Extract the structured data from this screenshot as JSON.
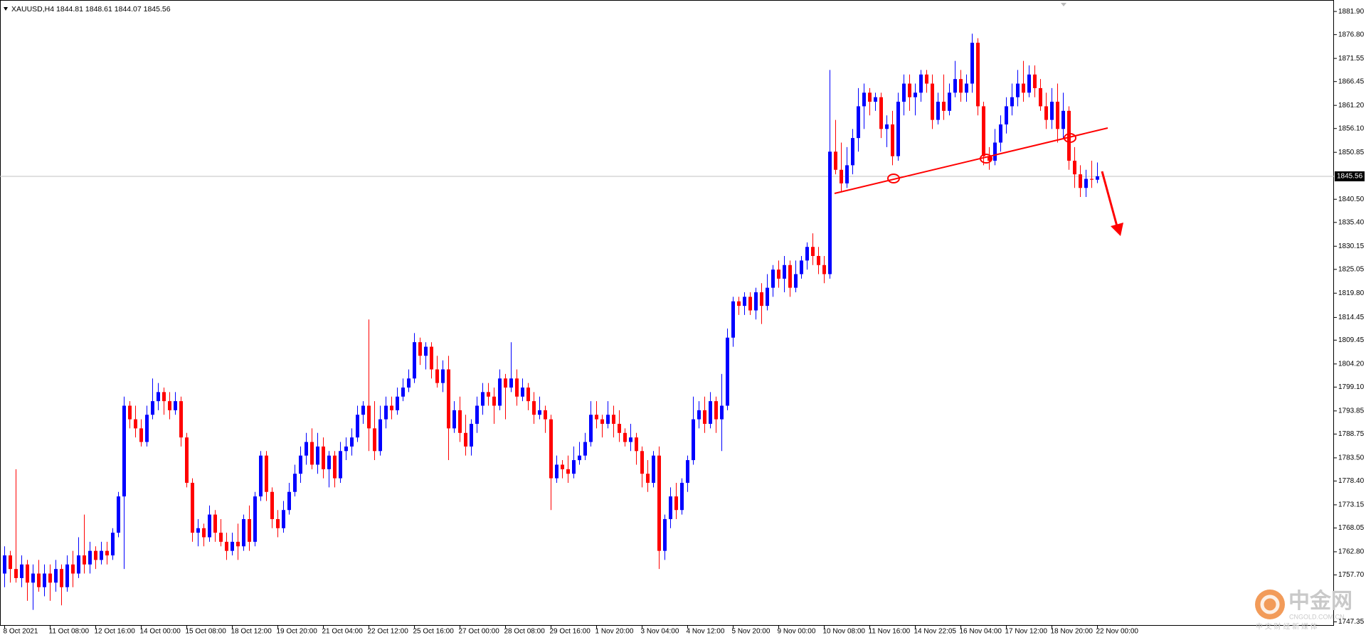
{
  "chart_data": {
    "type": "candlestick",
    "title": "XAUUSD,H4  1844.81 1848.61 1844.07 1845.56",
    "colors": {
      "up": "#0000ff",
      "down": "#ff0000"
    },
    "grid": false,
    "ylim": [
      1746.8,
      1883.8
    ],
    "yticks": [
      {
        "value": 1881.9,
        "label": "1881.90"
      },
      {
        "value": 1876.8,
        "label": "1876.80"
      },
      1871.55,
      1866.45,
      {
        "value": 1861.2,
        "label": "1861.20"
      },
      {
        "value": 1856.1,
        "label": "1856.10"
      },
      1850.85,
      {
        "value": 1840.5,
        "label": "1840.50"
      },
      {
        "value": 1835.4,
        "label": "1835.40"
      },
      1830.15,
      1825.05,
      {
        "value": 1819.8,
        "label": "1819.80"
      },
      1814.45,
      1809.45,
      {
        "value": 1804.2,
        "label": "1804.20"
      },
      {
        "value": 1799.1,
        "label": "1799.10"
      },
      1793.85,
      1788.75,
      {
        "value": 1783.5,
        "label": "1783.50"
      },
      {
        "value": 1778.4,
        "label": "1778.40"
      },
      1773.15,
      1768.05,
      {
        "value": 1762.8,
        "label": "1762.80"
      },
      {
        "value": 1757.7,
        "label": "1757.70"
      },
      1747.35
    ],
    "current_price": 1845.56,
    "categories": [
      "8 Oct 2021",
      null,
      null,
      null,
      null,
      null,
      null,
      null,
      "11 Oct 08:00",
      null,
      null,
      null,
      null,
      null,
      null,
      null,
      "12 Oct 16:00",
      null,
      null,
      null,
      null,
      null,
      null,
      null,
      "14 Oct 00:00",
      null,
      null,
      null,
      null,
      null,
      null,
      null,
      "15 Oct 08:00",
      null,
      null,
      null,
      null,
      null,
      null,
      null,
      "18 Oct 12:00",
      null,
      null,
      null,
      null,
      null,
      null,
      null,
      "19 Oct 20:00",
      null,
      null,
      null,
      null,
      null,
      null,
      null,
      "21 Oct 04:00",
      null,
      null,
      null,
      null,
      null,
      null,
      null,
      "22 Oct 12:00",
      null,
      null,
      null,
      null,
      null,
      null,
      null,
      "25 Oct 16:00",
      null,
      null,
      null,
      null,
      null,
      null,
      null,
      "27 Oct 00:00",
      null,
      null,
      null,
      null,
      null,
      null,
      null,
      "28 Oct 08:00",
      null,
      null,
      null,
      null,
      null,
      null,
      null,
      "29 Oct 16:00",
      null,
      null,
      null,
      null,
      null,
      null,
      null,
      "1 Nov 20:00",
      null,
      null,
      null,
      null,
      null,
      null,
      null,
      "3 Nov 04:00",
      null,
      null,
      null,
      null,
      null,
      null,
      null,
      "4 Nov 12:00",
      null,
      null,
      null,
      null,
      null,
      null,
      null,
      "5 Nov 20:00",
      null,
      null,
      null,
      null,
      null,
      null,
      null,
      "9 Nov 00:00",
      null,
      null,
      null,
      null,
      null,
      null,
      null,
      "10 Nov 08:00",
      null,
      null,
      null,
      null,
      null,
      null,
      null,
      "11 Nov 16:00",
      null,
      null,
      null,
      null,
      null,
      null,
      null,
      "14 Nov 22:05",
      null,
      null,
      null,
      null,
      null,
      null,
      null,
      "16 Nov 04:00",
      null,
      null,
      null,
      null,
      null,
      null,
      null,
      "17 Nov 12:00",
      null,
      null,
      null,
      null,
      null,
      null,
      null,
      "18 Nov 20:00",
      null,
      null,
      null,
      null,
      null,
      null,
      null,
      "22 Nov 00:00"
    ],
    "open": [
      1758,
      1762,
      1759,
      1757,
      1760,
      1756,
      1758,
      1755,
      1758,
      1756,
      1759,
      1755,
      1760,
      1758,
      1762,
      1760,
      1763,
      1761,
      1763,
      1762,
      1767,
      1775,
      1795,
      1792,
      1790,
      1787,
      1793,
      1796,
      1798,
      1796,
      1794,
      1796,
      1788,
      1778,
      1767,
      1768,
      1766,
      1771,
      1767,
      1765,
      1763,
      1765,
      1764,
      1770,
      1765,
      1775,
      1784,
      1776,
      1770,
      1768,
      1772,
      1776,
      1780,
      1784,
      1787,
      1782,
      1786,
      1781,
      1784,
      1779,
      1785,
      1786,
      1788,
      1793,
      1795,
      1790,
      1785,
      1792,
      1795,
      1794,
      1797,
      1799,
      1801,
      1809,
      1806,
      1808,
      1803,
      1800,
      1803,
      1790,
      1794,
      1789,
      1786,
      1791,
      1795,
      1798,
      1797,
      1795,
      1801,
      1799,
      1801,
      1797,
      1799,
      1796,
      1793,
      1794,
      1792,
      1779,
      1782,
      1781,
      1780,
      1783,
      1784,
      1787,
      1793,
      1792,
      1791,
      1793,
      1791,
      1789,
      1787,
      1788,
      1785,
      1780,
      1778,
      1784,
      1763,
      1770,
      1775,
      1772,
      1778,
      1783,
      1792,
      1794,
      1791,
      1796,
      1792,
      1795,
      1810,
      1818,
      1817,
      1819,
      1816,
      1820,
      1817,
      1821,
      1825,
      1823,
      1826,
      1821,
      1824,
      1827,
      1830,
      1828,
      1826,
      1824,
      1851,
      1847,
      1844,
      1848,
      1854,
      1861,
      1864,
      1862,
      1863,
      1856,
      1857,
      1850,
      1862,
      1866,
      1863,
      1864,
      1868,
      1866,
      1858,
      1862,
      1860,
      1864,
      1867,
      1864,
      1866,
      1875,
      1861,
      1850,
      1849,
      1853,
      1857,
      1861,
      1863,
      1866,
      1864,
      1868,
      1865,
      1861,
      1858,
      1862,
      1856,
      1860,
      1849,
      1846,
      1843,
      1845,
      1844.81
    ],
    "high": [
      1764,
      1763,
      1781,
      1762,
      1761,
      1760,
      1761,
      1760,
      1760,
      1761,
      1760,
      1762,
      1763,
      1766,
      1771,
      1765,
      1764,
      1765,
      1765,
      1768,
      1776,
      1797,
      1796,
      1795,
      1792,
      1795,
      1801,
      1800,
      1799,
      1798,
      1798,
      1797,
      1789,
      1779,
      1770,
      1769,
      1773,
      1772,
      1770,
      1767,
      1767,
      1769,
      1771,
      1773,
      1776,
      1785,
      1785,
      1777,
      1772,
      1774,
      1778,
      1782,
      1786,
      1789,
      1790,
      1789,
      1788,
      1785,
      1785,
      1787,
      1788,
      1790,
      1795,
      1796,
      1814,
      1796,
      1795,
      1797,
      1797,
      1799,
      1801,
      1803,
      1811,
      1810,
      1809,
      1809,
      1806,
      1805,
      1806,
      1796,
      1797,
      1793,
      1792,
      1797,
      1800,
      1800,
      1799,
      1803,
      1802,
      1809,
      1803,
      1801,
      1800,
      1798,
      1797,
      1795,
      1793,
      1784,
      1783,
      1784,
      1786,
      1787,
      1789,
      1796,
      1796,
      1793,
      1796,
      1795,
      1794,
      1790,
      1791,
      1789,
      1786,
      1783,
      1785,
      1786,
      1771,
      1777,
      1778,
      1779,
      1784,
      1797,
      1796,
      1797,
      1798,
      1797,
      1802,
      1812,
      1819,
      1819,
      1820,
      1820,
      1821,
      1822,
      1824,
      1826,
      1827,
      1828,
      1827,
      1827,
      1828,
      1831,
      1833,
      1830,
      1828,
      1869,
      1858,
      1853,
      1852,
      1856,
      1865,
      1866,
      1865,
      1864,
      1864,
      1859,
      1860,
      1864,
      1868,
      1868,
      1866,
      1869,
      1869,
      1868,
      1864,
      1868,
      1866,
      1871,
      1869,
      1868,
      1877,
      1876,
      1862,
      1852,
      1856,
      1859,
      1863,
      1866,
      1869,
      1871,
      1870,
      1870,
      1867,
      1864,
      1865,
      1866,
      1864,
      1861,
      1852,
      1848,
      1847,
      1849,
      1848.61
    ],
    "low": [
      1755,
      1756,
      1756,
      1755,
      1752,
      1750,
      1754,
      1753,
      1752,
      1754,
      1751,
      1754,
      1755,
      1757,
      1758,
      1758,
      1759,
      1760,
      1760,
      1761,
      1766,
      1759,
      1790,
      1788,
      1786,
      1786,
      1792,
      1794,
      1793,
      1792,
      1793,
      1786,
      1777,
      1765,
      1764,
      1764,
      1765,
      1765,
      1764,
      1761,
      1762,
      1761,
      1763,
      1763,
      1764,
      1774,
      1774,
      1768,
      1766,
      1767,
      1771,
      1775,
      1778,
      1782,
      1781,
      1780,
      1779,
      1777,
      1777,
      1778,
      1783,
      1784,
      1787,
      1791,
      1785,
      1783,
      1784,
      1790,
      1792,
      1793,
      1796,
      1798,
      1800,
      1804,
      1803,
      1801,
      1799,
      1798,
      1783,
      1789,
      1787,
      1784,
      1784,
      1789,
      1793,
      1795,
      1791,
      1794,
      1792,
      1798,
      1795,
      1796,
      1794,
      1791,
      1792,
      1789,
      1772,
      1778,
      1779,
      1778,
      1779,
      1782,
      1783,
      1786,
      1790,
      1788,
      1790,
      1788,
      1787,
      1786,
      1785,
      1782,
      1777,
      1776,
      1777,
      1759,
      1761,
      1768,
      1770,
      1771,
      1776,
      1782,
      1790,
      1789,
      1790,
      1789,
      1785,
      1794,
      1808,
      1815,
      1815,
      1815,
      1814,
      1813,
      1816,
      1819,
      1821,
      1820,
      1819,
      1820,
      1823,
      1825,
      1826,
      1824,
      1822,
      1823,
      1846,
      1842,
      1843,
      1846,
      1851,
      1856,
      1859,
      1860,
      1854,
      1852,
      1848,
      1849,
      1859,
      1860,
      1859,
      1862,
      1864,
      1856,
      1857,
      1858,
      1859,
      1863,
      1862,
      1862,
      1864,
      1859,
      1848,
      1847,
      1848,
      1851,
      1855,
      1859,
      1861,
      1862,
      1863,
      1863,
      1860,
      1856,
      1856,
      1853,
      1854,
      1847,
      1843,
      1841,
      1841,
      1843,
      1844.07
    ],
    "close": [
      1762,
      1759,
      1757,
      1760,
      1756,
      1758,
      1755,
      1758,
      1756,
      1759,
      1755,
      1760,
      1758,
      1762,
      1760,
      1763,
      1761,
      1763,
      1762,
      1767,
      1775,
      1795,
      1792,
      1790,
      1787,
      1793,
      1796,
      1798,
      1796,
      1794,
      1796,
      1788,
      1778,
      1767,
      1768,
      1766,
      1771,
      1767,
      1765,
      1763,
      1765,
      1764,
      1770,
      1765,
      1775,
      1784,
      1776,
      1770,
      1768,
      1772,
      1776,
      1780,
      1784,
      1787,
      1782,
      1786,
      1781,
      1784,
      1779,
      1785,
      1786,
      1788,
      1793,
      1795,
      1790,
      1785,
      1792,
      1795,
      1794,
      1797,
      1799,
      1801,
      1809,
      1806,
      1808,
      1803,
      1800,
      1803,
      1790,
      1794,
      1789,
      1786,
      1791,
      1795,
      1798,
      1797,
      1795,
      1801,
      1799,
      1801,
      1797,
      1799,
      1796,
      1793,
      1794,
      1792,
      1779,
      1782,
      1781,
      1780,
      1783,
      1784,
      1787,
      1793,
      1792,
      1791,
      1793,
      1791,
      1789,
      1787,
      1788,
      1785,
      1780,
      1778,
      1784,
      1763,
      1770,
      1775,
      1772,
      1778,
      1783,
      1792,
      1794,
      1791,
      1796,
      1792,
      1795,
      1810,
      1818,
      1817,
      1819,
      1816,
      1820,
      1817,
      1821,
      1825,
      1823,
      1826,
      1821,
      1824,
      1827,
      1830,
      1828,
      1826,
      1824,
      1851,
      1847,
      1844,
      1848,
      1854,
      1861,
      1864,
      1862,
      1863,
      1856,
      1857,
      1850,
      1862,
      1866,
      1863,
      1864,
      1868,
      1866,
      1858,
      1862,
      1860,
      1864,
      1867,
      1864,
      1866,
      1875,
      1861,
      1850,
      1849,
      1853,
      1857,
      1861,
      1863,
      1866,
      1864,
      1868,
      1865,
      1861,
      1858,
      1862,
      1856,
      1860,
      1849,
      1846,
      1843,
      1845,
      1844.81,
      1845.56
    ]
  },
  "watermark": {
    "brand": "中金网",
    "site": "CNGOLD.COM.CN",
    "slogan": "中 文 财 经 新 媒 体"
  }
}
